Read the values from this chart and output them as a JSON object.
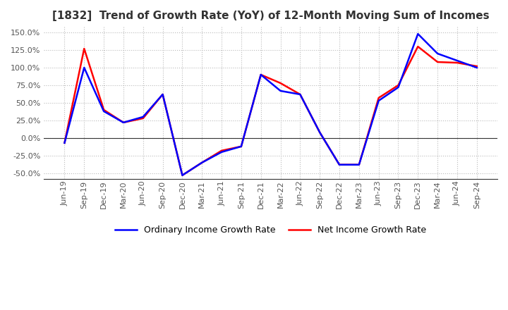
{
  "title": "[1832]  Trend of Growth Rate (YoY) of 12-Month Moving Sum of Incomes",
  "ylabel_ticks": [
    150,
    125,
    100,
    75,
    50,
    25,
    0,
    -25,
    -50
  ],
  "ylim": [
    -58,
    158
  ],
  "legend_labels": [
    "Ordinary Income Growth Rate",
    "Net Income Growth Rate"
  ],
  "line_colors": [
    "#0000FF",
    "#FF0000"
  ],
  "background_color": "#FFFFFF",
  "grid_color": "#BBBBBB",
  "x_labels": [
    "Jun-19",
    "Sep-19",
    "Dec-19",
    "Mar-20",
    "Jun-20",
    "Sep-20",
    "Dec-20",
    "Mar-21",
    "Jun-21",
    "Sep-21",
    "Dec-21",
    "Mar-22",
    "Jun-22",
    "Sep-22",
    "Dec-22",
    "Mar-23",
    "Jun-23",
    "Sep-23",
    "Dec-23",
    "Mar-24",
    "Jun-24",
    "Sep-24"
  ],
  "ordinary_income": [
    -7,
    100,
    38,
    22,
    30,
    62,
    -53,
    -35,
    -20,
    -12,
    90,
    67,
    62,
    8,
    -38,
    -38,
    53,
    72,
    148,
    120,
    110,
    100
  ],
  "net_income": [
    -7,
    127,
    40,
    22,
    28,
    62,
    -53,
    -35,
    -18,
    -12,
    90,
    78,
    62,
    8,
    -38,
    -38,
    57,
    75,
    130,
    108,
    107,
    102
  ]
}
